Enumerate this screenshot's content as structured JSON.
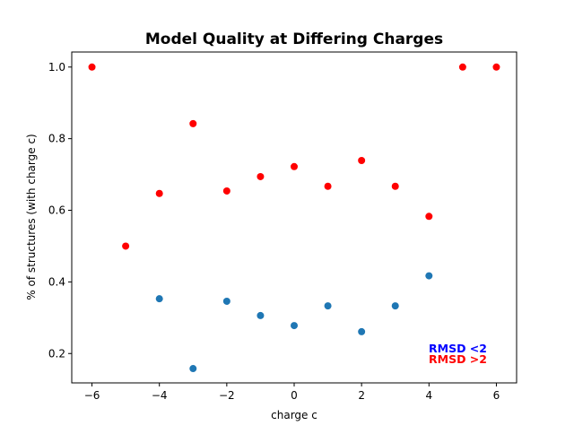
{
  "chart_data": {
    "type": "scatter",
    "title": "Model Quality at Differing Charges",
    "xlabel": "charge c",
    "ylabel": "%  of structures (with charge c)",
    "xlim": [
      -6.6,
      6.6
    ],
    "ylim": [
      0.118,
      1.042
    ],
    "xticks": [
      -6,
      -4,
      -2,
      0,
      2,
      4,
      6
    ],
    "xtick_labels": [
      "−6",
      "−4",
      "−2",
      "0",
      "2",
      "4",
      "6"
    ],
    "yticks": [
      0.2,
      0.4,
      0.6,
      0.8,
      1.0
    ],
    "ytick_labels": [
      "0.2",
      "0.4",
      "0.6",
      "0.8",
      "1.0"
    ],
    "grid": false,
    "legend_placement": "bottom-right",
    "series": [
      {
        "name": "RMSD <2",
        "color": "#1f77b4",
        "x": [
          -4,
          -3,
          -2,
          -1,
          0,
          1,
          2,
          3,
          4
        ],
        "y": [
          0.353,
          0.158,
          0.346,
          0.306,
          0.278,
          0.333,
          0.261,
          0.333,
          0.417
        ]
      },
      {
        "name": "RMSD >2",
        "color": "#ff0000",
        "x": [
          -6,
          -5,
          -4,
          -3,
          -2,
          -1,
          0,
          1,
          2,
          3,
          4,
          5,
          6
        ],
        "y": [
          1.0,
          0.5,
          0.647,
          0.842,
          0.654,
          0.694,
          0.722,
          0.667,
          0.739,
          0.667,
          0.583,
          1.0,
          1.0
        ]
      }
    ],
    "legend": [
      {
        "label": "RMSD <2",
        "color": "#0000ff"
      },
      {
        "label": "RMSD >2",
        "color": "#ff0000"
      }
    ]
  }
}
